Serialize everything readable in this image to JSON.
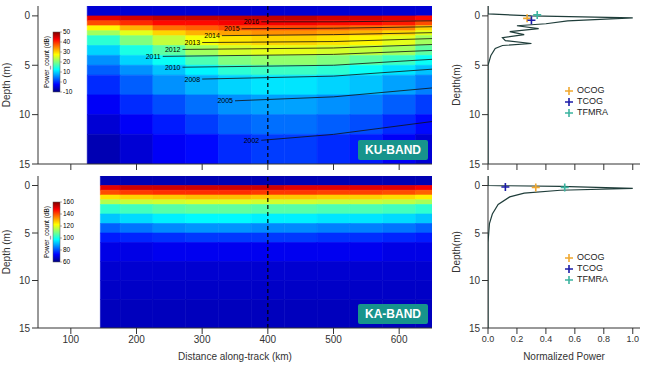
{
  "chart_data": [
    {
      "type": "heatmap",
      "badge": "KU-BAND",
      "ylabel": "Depth (m)",
      "xlim": [
        50,
        650
      ],
      "xticks": [
        100,
        200,
        300,
        400,
        500,
        600
      ],
      "ylim": [
        15,
        -1
      ],
      "yticks": [
        0,
        5,
        10,
        15
      ],
      "tick_labels": "y",
      "grid": false,
      "x_edges": [
        125,
        175,
        225,
        275,
        325,
        375,
        425,
        475,
        525,
        575,
        625,
        650
      ],
      "depth_edges": [
        -1,
        0,
        0.5,
        1,
        1.5,
        2,
        3,
        4,
        5,
        6,
        8,
        10,
        12,
        15
      ],
      "cells": [
        [
          -5,
          -5,
          -5,
          -5,
          -5,
          -5,
          -5,
          -5,
          -5,
          -5,
          -5
        ],
        [
          44,
          45,
          46,
          46,
          46,
          46,
          46,
          45,
          45,
          44,
          42
        ],
        [
          38,
          40,
          42,
          42,
          43,
          43,
          43,
          42,
          42,
          41,
          38
        ],
        [
          28,
          32,
          36,
          37,
          38,
          38,
          38,
          37,
          36,
          35,
          30
        ],
        [
          22,
          26,
          30,
          32,
          33,
          34,
          34,
          33,
          32,
          30,
          26
        ],
        [
          15,
          20,
          24,
          27,
          29,
          30,
          30,
          29,
          28,
          26,
          22
        ],
        [
          10,
          14,
          18,
          22,
          25,
          26,
          26,
          25,
          24,
          22,
          18
        ],
        [
          6,
          10,
          13,
          17,
          20,
          21,
          21,
          20,
          18,
          16,
          13
        ],
        [
          3,
          6,
          9,
          12,
          15,
          16,
          16,
          15,
          13,
          11,
          9
        ],
        [
          0,
          3,
          6,
          8,
          10,
          11,
          11,
          10,
          9,
          7,
          5
        ],
        [
          -3,
          0,
          2,
          4,
          6,
          7,
          7,
          6,
          5,
          3,
          1
        ],
        [
          -5,
          -3,
          -1,
          1,
          3,
          4,
          4,
          3,
          2,
          0,
          -2
        ],
        [
          -7,
          -5,
          -3,
          -2,
          0,
          1,
          1,
          0,
          -1,
          -3,
          -5
        ]
      ],
      "colorbar": {
        "label": "Power_count (dB)",
        "range": [
          -10,
          50
        ],
        "ticks": [
          -10,
          0,
          10,
          20,
          30,
          40,
          50
        ]
      },
      "vertical_line": 400,
      "layers": [
        {
          "label": "2016",
          "x": [
            390,
            500,
            650
          ],
          "depth": [
            0.6,
            0.6,
            0.5
          ]
        },
        {
          "label": "2015",
          "x": [
            360,
            500,
            650
          ],
          "depth": [
            1.3,
            1.25,
            1.1
          ]
        },
        {
          "label": "2014",
          "x": [
            330,
            500,
            650
          ],
          "depth": [
            2.0,
            1.9,
            1.7
          ]
        },
        {
          "label": "2013",
          "x": [
            300,
            500,
            650
          ],
          "depth": [
            2.7,
            2.6,
            2.3
          ]
        },
        {
          "label": "2012",
          "x": [
            270,
            500,
            650
          ],
          "depth": [
            3.4,
            3.25,
            2.9
          ]
        },
        {
          "label": "2011",
          "x": [
            240,
            500,
            650
          ],
          "depth": [
            4.1,
            3.9,
            3.5
          ]
        },
        {
          "label": "2010",
          "x": [
            270,
            500,
            650
          ],
          "depth": [
            5.2,
            5.0,
            4.4
          ]
        },
        {
          "label": "2008",
          "x": [
            300,
            500,
            650
          ],
          "depth": [
            6.4,
            6.1,
            5.4
          ]
        },
        {
          "label": "2005",
          "x": [
            350,
            500,
            650
          ],
          "depth": [
            8.6,
            8.2,
            7.3
          ]
        },
        {
          "label": "2002",
          "x": [
            390,
            500,
            650
          ],
          "depth": [
            12.6,
            12.0,
            10.7
          ]
        }
      ]
    },
    {
      "type": "heatmap",
      "badge": "KA-BAND",
      "ylabel": "Depth (m)",
      "xlabel": "Distance along-track (km)",
      "xlim": [
        50,
        650
      ],
      "xticks": [
        100,
        200,
        300,
        400,
        500,
        600
      ],
      "ylim": [
        15,
        -1
      ],
      "yticks": [
        0,
        5,
        10,
        15
      ],
      "grid": false,
      "x_edges": [
        145,
        175,
        225,
        275,
        325,
        375,
        425,
        475,
        525,
        575,
        625,
        650
      ],
      "depth_edges": [
        -1,
        0,
        0.5,
        1,
        1.5,
        2,
        3,
        4,
        5,
        6,
        8,
        10,
        12,
        15
      ],
      "cells": [
        [
          65,
          65,
          65,
          65,
          65,
          65,
          65,
          65,
          65,
          65,
          65
        ],
        [
          150,
          152,
          152,
          152,
          152,
          152,
          150,
          150,
          150,
          150,
          148
        ],
        [
          140,
          142,
          143,
          143,
          143,
          142,
          142,
          141,
          141,
          140,
          138
        ],
        [
          125,
          127,
          128,
          129,
          129,
          128,
          128,
          127,
          127,
          126,
          124
        ],
        [
          115,
          117,
          118,
          119,
          119,
          118,
          118,
          117,
          117,
          116,
          114
        ],
        [
          102,
          104,
          106,
          107,
          107,
          106,
          106,
          105,
          105,
          104,
          102
        ],
        [
          92,
          94,
          96,
          97,
          97,
          96,
          96,
          95,
          95,
          94,
          92
        ],
        [
          82,
          84,
          86,
          87,
          87,
          86,
          86,
          85,
          85,
          84,
          82
        ],
        [
          75,
          76,
          77,
          78,
          78,
          78,
          78,
          77,
          77,
          76,
          75
        ],
        [
          70,
          70,
          71,
          71,
          71,
          71,
          71,
          71,
          71,
          70,
          70
        ],
        [
          68,
          68,
          68,
          68,
          68,
          68,
          68,
          68,
          68,
          68,
          68
        ],
        [
          67,
          67,
          67,
          67,
          67,
          67,
          67,
          67,
          67,
          67,
          67
        ],
        [
          66,
          66,
          66,
          66,
          66,
          66,
          66,
          66,
          66,
          66,
          66
        ]
      ],
      "colorbar": {
        "label": "Power_count (dB)",
        "range": [
          60,
          160
        ],
        "ticks": [
          60,
          80,
          100,
          120,
          140,
          160
        ]
      },
      "vertical_line": 400,
      "layers": []
    },
    {
      "type": "line",
      "ylabel": "Depth(m)",
      "xlim": [
        0,
        1.05
      ],
      "xticks": [
        0,
        0.2,
        0.4,
        0.6,
        0.8,
        1
      ],
      "ylim": [
        15,
        -1
      ],
      "yticks": [
        0,
        5,
        10,
        15
      ],
      "tick_labels": "y",
      "legend": "right",
      "grid": false,
      "color": "#1f3d3a",
      "line_style": "solid",
      "depth": [
        -1,
        -0.2,
        0,
        0.2,
        0.5,
        0.8,
        1.0,
        1.3,
        1.6,
        1.9,
        2.2,
        2.5,
        2.8,
        3.0,
        3.3,
        4,
        5,
        15
      ],
      "power": [
        0,
        0,
        0.3,
        1,
        0.55,
        0.4,
        0.2,
        0.35,
        0.15,
        0.25,
        0.1,
        0.12,
        0.3,
        0.1,
        0.05,
        0.02,
        0,
        0
      ],
      "markers": [
        {
          "name": "OCOG",
          "color": "#f0a830",
          "marker": "plus",
          "power": 0.27,
          "depth": 0.25
        },
        {
          "name": "TCOG",
          "color": "#1c1ca8",
          "marker": "plus",
          "power": 0.3,
          "depth": 0.45
        },
        {
          "name": "TFMRA",
          "color": "#3cb4a0",
          "marker": "plus",
          "power": 0.34,
          "depth": -0.1
        }
      ]
    },
    {
      "type": "line",
      "ylabel": "Depth(m)",
      "xlabel": "Normalized Power",
      "xlim": [
        0,
        1.05
      ],
      "xticks": [
        {
          "value": 0,
          "label": "0.0"
        },
        0.2,
        0.4,
        0.6,
        0.8,
        {
          "value": 1,
          "label": "1.0"
        }
      ],
      "ylim": [
        15,
        -1
      ],
      "yticks": [
        0,
        5,
        10,
        15
      ],
      "legend": "right",
      "grid": false,
      "color": "#1f3d3a",
      "line_style": "solid",
      "depth": [
        -1,
        0,
        0.1,
        0.3,
        0.5,
        0.8,
        1.2,
        2,
        3,
        4,
        6,
        15
      ],
      "power": [
        0,
        0,
        0.5,
        1,
        0.5,
        0.25,
        0.15,
        0.07,
        0.03,
        0.01,
        0,
        0
      ],
      "markers": [
        {
          "name": "OCOG",
          "color": "#f0a830",
          "marker": "plus",
          "power": 0.33,
          "depth": 0.2
        },
        {
          "name": "TCOG",
          "color": "#1c1ca8",
          "marker": "plus",
          "power": 0.12,
          "depth": 0.15
        },
        {
          "name": "TFMRA",
          "color": "#3cb4a0",
          "marker": "plus",
          "power": 0.53,
          "depth": 0.2
        }
      ]
    }
  ]
}
